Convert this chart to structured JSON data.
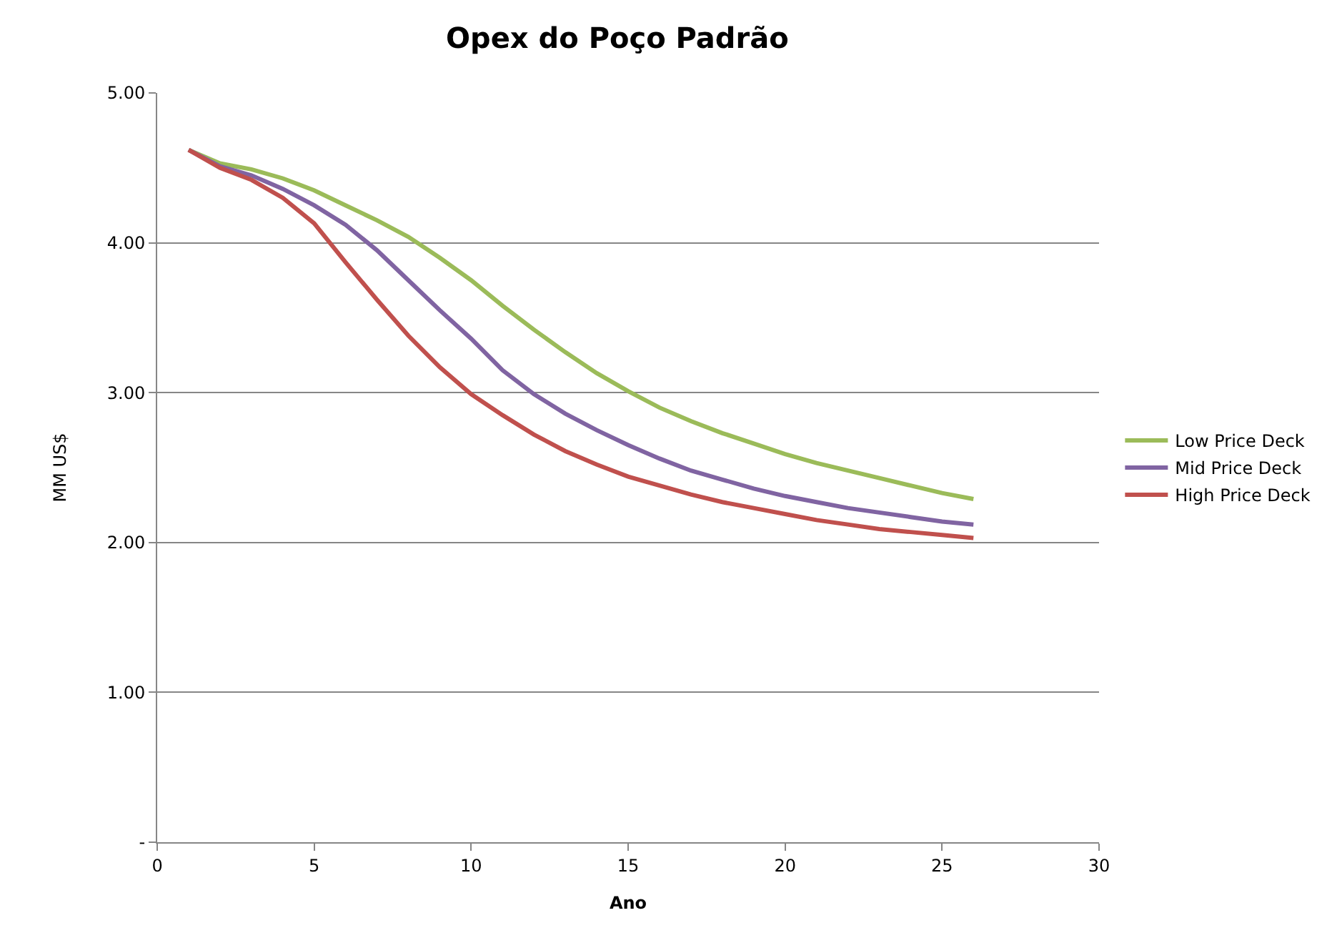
{
  "chart_data": {
    "type": "line",
    "title": "Opex do Poço Padrão",
    "xlabel": "Ano",
    "ylabel": "MM US$",
    "x": [
      1,
      2,
      3,
      4,
      5,
      6,
      7,
      8,
      9,
      10,
      11,
      12,
      13,
      14,
      15,
      16,
      17,
      18,
      19,
      20,
      21,
      22,
      23,
      24,
      25,
      26
    ],
    "series": [
      {
        "name": "Low Price Deck",
        "color": "#9bbb59",
        "values": [
          4.62,
          4.53,
          4.49,
          4.43,
          4.35,
          4.25,
          4.15,
          4.04,
          3.9,
          3.75,
          3.58,
          3.42,
          3.27,
          3.13,
          3.01,
          2.9,
          2.81,
          2.73,
          2.66,
          2.59,
          2.53,
          2.48,
          2.43,
          2.38,
          2.33,
          2.29
        ]
      },
      {
        "name": "Mid Price Deck",
        "color": "#8064a2",
        "values": [
          4.62,
          4.51,
          4.45,
          4.36,
          4.25,
          4.12,
          3.95,
          3.75,
          3.55,
          3.36,
          3.15,
          2.99,
          2.86,
          2.75,
          2.65,
          2.56,
          2.48,
          2.42,
          2.36,
          2.31,
          2.27,
          2.23,
          2.2,
          2.17,
          2.14,
          2.12
        ]
      },
      {
        "name": "High Price Deck",
        "color": "#c0504d",
        "values": [
          4.62,
          4.5,
          4.42,
          4.3,
          4.13,
          3.87,
          3.62,
          3.38,
          3.17,
          2.99,
          2.85,
          2.72,
          2.61,
          2.52,
          2.44,
          2.38,
          2.32,
          2.27,
          2.23,
          2.19,
          2.15,
          2.12,
          2.09,
          2.07,
          2.05,
          2.03
        ]
      }
    ],
    "xlim": [
      0,
      30
    ],
    "xticks": [
      0,
      5,
      10,
      15,
      20,
      25,
      30
    ],
    "ylim": [
      0,
      5
    ],
    "yticks": [
      {
        "value": 0,
        "label": "-"
      },
      {
        "value": 1,
        "label": "1.00"
      },
      {
        "value": 2,
        "label": "2.00"
      },
      {
        "value": 3,
        "label": "3.00"
      },
      {
        "value": 4,
        "label": "4.00"
      },
      {
        "value": 5,
        "label": "5.00"
      }
    ],
    "grid": "y",
    "legend": "right",
    "marker": "none",
    "line_style": "solid"
  }
}
